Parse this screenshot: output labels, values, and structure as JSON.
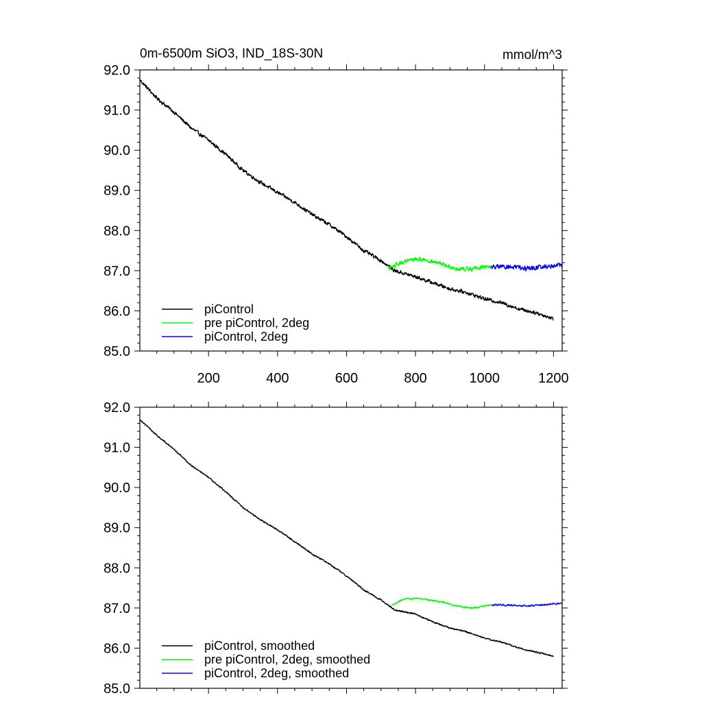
{
  "chart_data": [
    {
      "type": "line",
      "title": "0m-6500m SiO3, IND_18S-30N",
      "units": "mmol/m^3",
      "xlim": [
        1,
        1225
      ],
      "ylim": [
        85.0,
        92.0
      ],
      "xticks": [
        200,
        400,
        600,
        800,
        1000,
        1200
      ],
      "xtick_labels": [
        "200",
        "400",
        "600",
        "800",
        "1000",
        "1200"
      ],
      "yticks": [
        85.0,
        86.0,
        87.0,
        88.0,
        89.0,
        90.0,
        91.0,
        92.0
      ],
      "ytick_labels": [
        "85.0",
        "86.0",
        "87.0",
        "88.0",
        "89.0",
        "90.0",
        "91.0",
        "92.0"
      ],
      "legend_position": "bottom-left",
      "series": [
        {
          "name": "piControl",
          "color": "#000000",
          "noise": 0.06,
          "x": [
            1,
            50,
            100,
            150,
            200,
            250,
            300,
            350,
            400,
            450,
            500,
            550,
            600,
            650,
            700,
            740,
            800,
            850,
            900,
            950,
            1000,
            1050,
            1100,
            1150,
            1200
          ],
          "y": [
            91.75,
            91.3,
            90.95,
            90.55,
            90.25,
            89.9,
            89.5,
            89.2,
            88.95,
            88.7,
            88.4,
            88.15,
            87.85,
            87.5,
            87.25,
            87.0,
            86.85,
            86.7,
            86.55,
            86.45,
            86.3,
            86.2,
            86.05,
            85.95,
            85.8
          ]
        },
        {
          "name": "pre piControl, 2deg",
          "color": "#00ff00",
          "noise": 0.07,
          "x": [
            720,
            760,
            800,
            840,
            880,
            920,
            960,
            1000,
            1020
          ],
          "y": [
            87.05,
            87.2,
            87.3,
            87.25,
            87.15,
            87.05,
            87.05,
            87.1,
            87.1
          ]
        },
        {
          "name": "piControl, 2deg",
          "color": "#0000ff",
          "noise": 0.08,
          "x": [
            1020,
            1070,
            1120,
            1170,
            1225
          ],
          "y": [
            87.1,
            87.1,
            87.05,
            87.1,
            87.15
          ]
        }
      ]
    },
    {
      "type": "line",
      "title": "",
      "xlim": [
        1,
        1225
      ],
      "ylim": [
        85.0,
        92.0
      ],
      "xticks": [
        200,
        400,
        600,
        800,
        1000,
        1200
      ],
      "xtick_labels": [],
      "yticks": [
        85.0,
        86.0,
        87.0,
        88.0,
        89.0,
        90.0,
        91.0,
        92.0
      ],
      "ytick_labels": [
        "85.0",
        "86.0",
        "87.0",
        "88.0",
        "89.0",
        "90.0",
        "91.0",
        "92.0"
      ],
      "legend_position": "bottom-left",
      "series": [
        {
          "name": "piControl, smoothed",
          "color": "#000000",
          "noise": 0.025,
          "x": [
            1,
            50,
            100,
            150,
            200,
            250,
            300,
            350,
            400,
            450,
            500,
            550,
            600,
            650,
            700,
            740,
            800,
            850,
            900,
            950,
            1000,
            1050,
            1100,
            1150,
            1200
          ],
          "y": [
            91.7,
            91.3,
            90.95,
            90.55,
            90.25,
            89.9,
            89.5,
            89.2,
            88.95,
            88.65,
            88.35,
            88.1,
            87.8,
            87.45,
            87.2,
            86.95,
            86.85,
            86.65,
            86.5,
            86.4,
            86.25,
            86.15,
            86.0,
            85.9,
            85.8
          ]
        },
        {
          "name": "pre piControl, 2deg, smoothed",
          "color": "#00ff00",
          "noise": 0.03,
          "x": [
            730,
            760,
            800,
            840,
            880,
            920,
            960,
            1000,
            1020
          ],
          "y": [
            87.05,
            87.2,
            87.25,
            87.2,
            87.15,
            87.05,
            87.0,
            87.05,
            87.08
          ]
        },
        {
          "name": "piControl, 2deg, smoothed",
          "color": "#0000ff",
          "noise": 0.03,
          "x": [
            1020,
            1070,
            1120,
            1170,
            1225
          ],
          "y": [
            87.08,
            87.07,
            87.05,
            87.08,
            87.12
          ]
        }
      ]
    }
  ]
}
